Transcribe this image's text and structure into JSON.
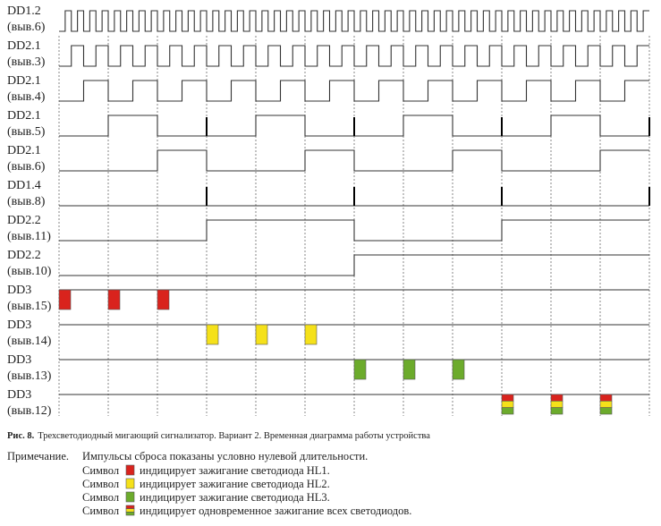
{
  "rows": [
    {
      "name": "DD1.2",
      "pin": "(выв.6)"
    },
    {
      "name": "DD2.1",
      "pin": "(выв.3)"
    },
    {
      "name": "DD2.1",
      "pin": "(выв.4)"
    },
    {
      "name": "DD2.1",
      "pin": "(выв.5)"
    },
    {
      "name": "DD2.1",
      "pin": "(выв.6)"
    },
    {
      "name": "DD1.4",
      "pin": "(выв.8)"
    },
    {
      "name": "DD2.2",
      "pin": "(выв.11)"
    },
    {
      "name": "DD2.2",
      "pin": "(выв.10)"
    },
    {
      "name": "DD3",
      "pin": "(выв.15)"
    },
    {
      "name": "DD3",
      "pin": "(выв.14)"
    },
    {
      "name": "DD3",
      "pin": "(выв.13)"
    },
    {
      "name": "DD3",
      "pin": "(выв.12)"
    }
  ],
  "caption": {
    "fig": "Рис. 8.",
    "text": "Трехсветодиодный мигающий сигнализатор. Вариант 2. Временная диаграмма работы устройства"
  },
  "note": {
    "label": "Примечание.",
    "text": "Импульсы сброса показаны условно нулевой длительности.",
    "items": [
      {
        "word": "Символ",
        "text": "индицирует зажигание светодиода HL1."
      },
      {
        "word": "Символ",
        "text": "индицирует зажигание светодиода HL2."
      },
      {
        "word": "Символ",
        "text": "индицирует зажигание светодиода HL3."
      },
      {
        "word": "Символ",
        "text": "индицирует одновременное зажигание всех светодиодов."
      }
    ]
  }
}
